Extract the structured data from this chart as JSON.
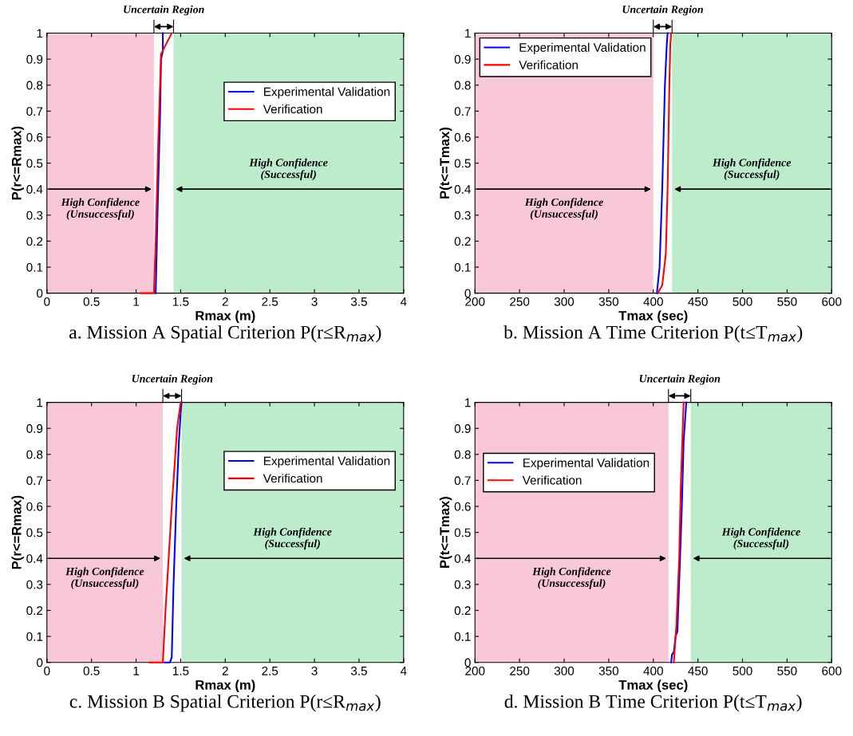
{
  "chart_data": [
    {
      "type": "line",
      "title": "a. Mission A Spatial Criterion P(r≤R$_{max}$)",
      "xlabel": "Rmax (m)",
      "ylabel": "P(r<=Rmax)",
      "xlim": [
        0,
        4
      ],
      "ylim": [
        0,
        1
      ],
      "xticks": [
        0,
        0.5,
        1,
        1.5,
        2,
        2.5,
        3,
        3.5,
        4
      ],
      "yticks": [
        0,
        0.1,
        0.2,
        0.3,
        0.4,
        0.5,
        0.6,
        0.7,
        0.8,
        0.9,
        1
      ],
      "grid": false,
      "legend": "top right",
      "line_style": "solid",
      "marker": "none",
      "series": [
        {
          "name": "Experimental Validation",
          "color": "#0000ff",
          "x": [
            1.22,
            1.24,
            1.27,
            1.28,
            1.3,
            1.3
          ],
          "values": [
            0,
            0.3,
            0.7,
            0.9,
            0.93,
            1
          ]
        },
        {
          "name": "Verification",
          "color": "#ff0000",
          "x": [
            1.05,
            1.2,
            1.22,
            1.25,
            1.28,
            1.4
          ],
          "values": [
            0,
            0,
            0.2,
            0.6,
            0.92,
            1
          ]
        }
      ],
      "bands": [
        {
          "axis": "x",
          "from": 0,
          "to": 1.2,
          "color": "#f9c8d8"
        },
        {
          "axis": "x",
          "from": 1.42,
          "to": 4,
          "color": "#bdeccc"
        }
      ],
      "annotations": [
        "High Confidence\n(Unsuccessful)",
        "High Confidence\n(Successful)",
        "Uncertain Region"
      ]
    },
    {
      "type": "line",
      "title": "b. Mission A Time Criterion P(t≤T$_{max}$)",
      "xlabel": "Tmax (sec)",
      "ylabel": "P(t<=Tmax)",
      "xlim": [
        200,
        600
      ],
      "ylim": [
        0,
        1
      ],
      "xticks": [
        200,
        250,
        300,
        350,
        400,
        450,
        500,
        550,
        600
      ],
      "yticks": [
        0,
        0.1,
        0.2,
        0.3,
        0.4,
        0.5,
        0.6,
        0.7,
        0.8,
        0.9,
        1
      ],
      "grid": false,
      "legend": "top left",
      "line_style": "solid",
      "marker": "none",
      "series": [
        {
          "name": "Experimental Validation",
          "color": "#0000ff",
          "x": [
            404,
            407,
            410,
            413,
            415,
            416
          ],
          "values": [
            0,
            0.1,
            0.4,
            0.8,
            0.95,
            1
          ]
        },
        {
          "name": "Verification",
          "color": "#ff0000",
          "x": [
            405,
            410,
            414,
            416,
            418,
            419,
            420
          ],
          "values": [
            0,
            0.03,
            0.15,
            0.4,
            0.8,
            0.95,
            1
          ]
        }
      ],
      "bands": [
        {
          "axis": "x",
          "from": 200,
          "to": 400,
          "color": "#f9c8d8"
        },
        {
          "axis": "x",
          "from": 421,
          "to": 600,
          "color": "#bdeccc"
        }
      ],
      "annotations": [
        "High Confidence\n(Unsuccessful)",
        "High Confidence\n(Successful)",
        "Uncertain Region"
      ]
    },
    {
      "type": "line",
      "title": "c. Mission B Spatial Criterion P(r≤R$_{max}$)",
      "xlabel": "Rmax (m)",
      "ylabel": "P(r<=Rmax)",
      "xlim": [
        0,
        4
      ],
      "ylim": [
        0,
        1
      ],
      "xticks": [
        0,
        0.5,
        1,
        1.5,
        2,
        2.5,
        3,
        3.5,
        4
      ],
      "yticks": [
        0,
        0.1,
        0.2,
        0.3,
        0.4,
        0.5,
        0.6,
        0.7,
        0.8,
        0.9,
        1
      ],
      "grid": false,
      "legend": "top right",
      "line_style": "solid",
      "marker": "none",
      "series": [
        {
          "name": "Experimental Validation",
          "color": "#0000ff",
          "x": [
            1.32,
            1.38,
            1.4,
            1.42,
            1.45,
            1.48,
            1.5,
            1.51
          ],
          "values": [
            0,
            0,
            0.02,
            0.3,
            0.6,
            0.85,
            0.96,
            1
          ]
        },
        {
          "name": "Verification",
          "color": "#ff0000",
          "x": [
            1.15,
            1.3,
            1.33,
            1.4,
            1.46,
            1.5
          ],
          "values": [
            0,
            0,
            0.2,
            0.6,
            0.9,
            1
          ]
        }
      ],
      "bands": [
        {
          "axis": "x",
          "from": 0,
          "to": 1.3,
          "color": "#f9c8d8"
        },
        {
          "axis": "x",
          "from": 1.51,
          "to": 4,
          "color": "#bdeccc"
        }
      ],
      "annotations": [
        "High Confidence\n(Unsuccessful)",
        "High Confidence\n(Successful)",
        "Uncertain Region"
      ]
    },
    {
      "type": "line",
      "title": "d. Mission B Time Criterion P(t≤T$_{max}$)",
      "xlabel": "Tmax (sec)",
      "ylabel": "P(t<=Tmax)",
      "xlim": [
        200,
        600
      ],
      "ylim": [
        0,
        1
      ],
      "xticks": [
        200,
        250,
        300,
        350,
        400,
        450,
        500,
        550,
        600
      ],
      "yticks": [
        0,
        0.1,
        0.2,
        0.3,
        0.4,
        0.5,
        0.6,
        0.7,
        0.8,
        0.9,
        1
      ],
      "grid": false,
      "legend": "left",
      "line_style": "solid",
      "marker": "none",
      "series": [
        {
          "name": "Experimental Validation",
          "color": "#0000ff",
          "x": [
            420,
            421,
            423,
            425,
            427,
            430,
            432,
            434,
            436,
            437
          ],
          "values": [
            0,
            0.03,
            0.04,
            0.1,
            0.12,
            0.4,
            0.6,
            0.85,
            0.95,
            1
          ]
        },
        {
          "name": "Verification",
          "color": "#ff0000",
          "x": [
            423,
            424,
            426,
            429,
            431,
            433,
            434
          ],
          "values": [
            0,
            0.05,
            0.15,
            0.4,
            0.7,
            0.9,
            1
          ]
        }
      ],
      "bands": [
        {
          "axis": "x",
          "from": 200,
          "to": 417,
          "color": "#f9c8d8"
        },
        {
          "axis": "x",
          "from": 442,
          "to": 600,
          "color": "#bdeccc"
        }
      ],
      "annotations": [
        "High Confidence\n(Unsuccessful)",
        "High Confidence\n(Successful)",
        "Uncertain Region"
      ]
    }
  ]
}
